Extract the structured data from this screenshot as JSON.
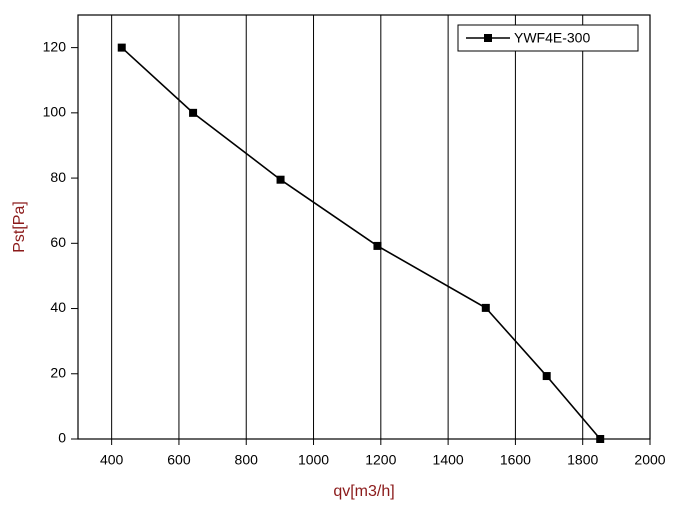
{
  "chart_data": {
    "type": "line",
    "x_label": "qv[m3/h]",
    "y_label": "Pst[Pa]",
    "series": [
      {
        "name": "YWF4E-300",
        "color": "#000000",
        "x": [
          430,
          642,
          902,
          1190,
          1512,
          1693,
          1852
        ],
        "values": [
          120,
          100,
          79.5,
          59.2,
          40.2,
          19.3,
          0
        ]
      }
    ],
    "xlim": [
      300,
      2000
    ],
    "xticks": [
      400,
      600,
      800,
      1000,
      1200,
      1400,
      1600,
      1800,
      2000
    ],
    "ylim": [
      0,
      130
    ],
    "yticks": [
      0,
      20,
      40,
      60,
      80,
      100,
      120
    ],
    "grid": true,
    "legend": "upper right"
  }
}
